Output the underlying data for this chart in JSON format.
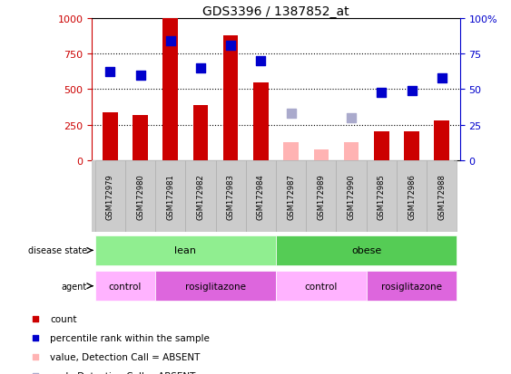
{
  "title": "GDS3396 / 1387852_at",
  "samples": [
    "GSM172979",
    "GSM172980",
    "GSM172981",
    "GSM172982",
    "GSM172983",
    "GSM172984",
    "GSM172987",
    "GSM172989",
    "GSM172990",
    "GSM172985",
    "GSM172986",
    "GSM172988"
  ],
  "count_values": [
    340,
    315,
    1000,
    390,
    880,
    545,
    null,
    null,
    null,
    205,
    205,
    280
  ],
  "count_absent": [
    null,
    null,
    null,
    null,
    null,
    null,
    130,
    75,
    130,
    null,
    null,
    null
  ],
  "rank_values": [
    62,
    60,
    84,
    65,
    81,
    70,
    null,
    null,
    null,
    48,
    49,
    58
  ],
  "rank_absent": [
    null,
    null,
    null,
    null,
    null,
    null,
    33,
    null,
    30,
    null,
    null,
    null
  ],
  "disease_state": [
    {
      "label": "lean",
      "start": 0,
      "end": 6,
      "color": "#90EE90"
    },
    {
      "label": "obese",
      "start": 6,
      "end": 12,
      "color": "#55CC55"
    }
  ],
  "agent": [
    {
      "label": "control",
      "start": 0,
      "end": 2,
      "color": "#FFB3FF"
    },
    {
      "label": "rosiglitazone",
      "start": 2,
      "end": 6,
      "color": "#DD66DD"
    },
    {
      "label": "control",
      "start": 6,
      "end": 9,
      "color": "#FFB3FF"
    },
    {
      "label": "rosiglitazone",
      "start": 9,
      "end": 12,
      "color": "#DD66DD"
    }
  ],
  "bar_color_present": "#CC0000",
  "bar_color_absent": "#FFB3B3",
  "rank_color_present": "#0000CC",
  "rank_color_absent": "#AAAACC",
  "ylim_left": [
    0,
    1000
  ],
  "ylim_right": [
    0,
    100
  ],
  "yticks_left": [
    0,
    250,
    500,
    750,
    1000
  ],
  "yticks_right": [
    0,
    25,
    50,
    75,
    100
  ],
  "bar_width": 0.5,
  "marker_size": 45,
  "sample_bg_color": "#CCCCCC",
  "fig_bg_color": "#FFFFFF"
}
